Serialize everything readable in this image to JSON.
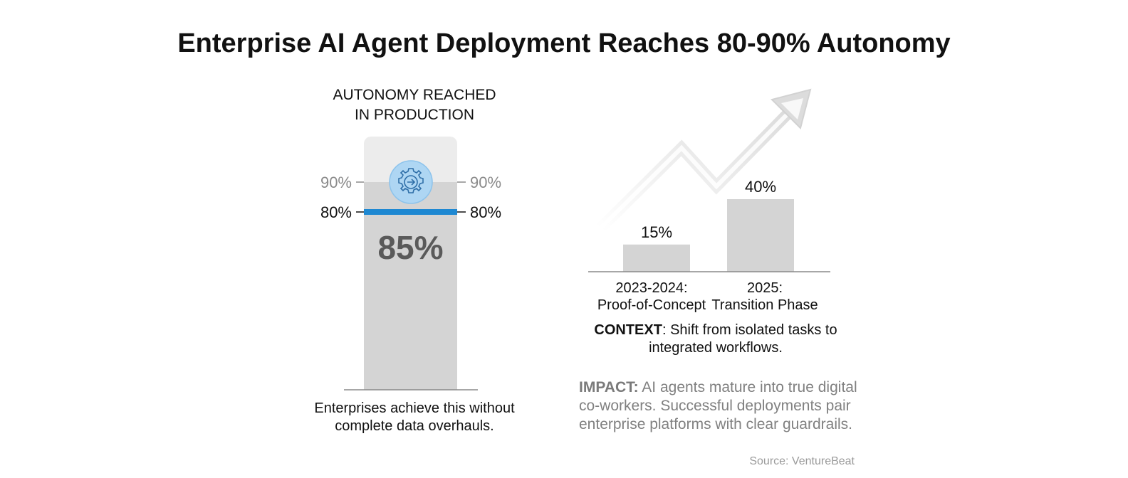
{
  "title": "Enterprise AI Agent Deployment Reaches 80-90% Autonomy",
  "autonomy_panel": {
    "heading_line1": "AUTONOMY REACHED",
    "heading_line2": "IN PRODUCTION",
    "caption_line1": "Enterprises achieve this without",
    "caption_line2": "complete data overhauls.",
    "icon": "gear-arrow-icon"
  },
  "context": {
    "label": "CONTEXT",
    "text_line1": ": Shift from isolated tasks to",
    "text_line2": "integrated workflows."
  },
  "impact": {
    "label": "IMPACT:",
    "text_line1": " AI agents mature into true digital",
    "text_line2": "co-workers. Successful deployments pair",
    "text_line3": "enterprise platforms with clear guardrails."
  },
  "source": "Source: VentureBeat",
  "colors": {
    "accent_blue": "#1e88d2",
    "bar_gray": "#d4d4d4",
    "band_gray": "#ececec",
    "label_gray": "#8a8a8a",
    "headline_value": "#5a5a5a",
    "arrow_gray": "#e0e0e0"
  },
  "chart_data": [
    {
      "type": "bar",
      "title": "AUTONOMY REACHED IN PRODUCTION",
      "categories": [
        "Autonomy"
      ],
      "values": [
        85
      ],
      "value_label": "85%",
      "range_low": 80,
      "range_high": 90,
      "range_low_label": "80%",
      "range_high_label": "90%",
      "ylim": [
        0,
        100
      ]
    },
    {
      "type": "bar",
      "title": "",
      "categories": [
        "2023-2024: Proof-of-Concept",
        "2025: Transition Phase"
      ],
      "category_lines": [
        [
          "2023-2024:",
          "Proof-of-Concept"
        ],
        [
          "2025:",
          "Transition Phase"
        ]
      ],
      "values": [
        15,
        40
      ],
      "value_labels": [
        "15%",
        "40%"
      ],
      "ylim": [
        0,
        50
      ],
      "trend": "up"
    }
  ]
}
